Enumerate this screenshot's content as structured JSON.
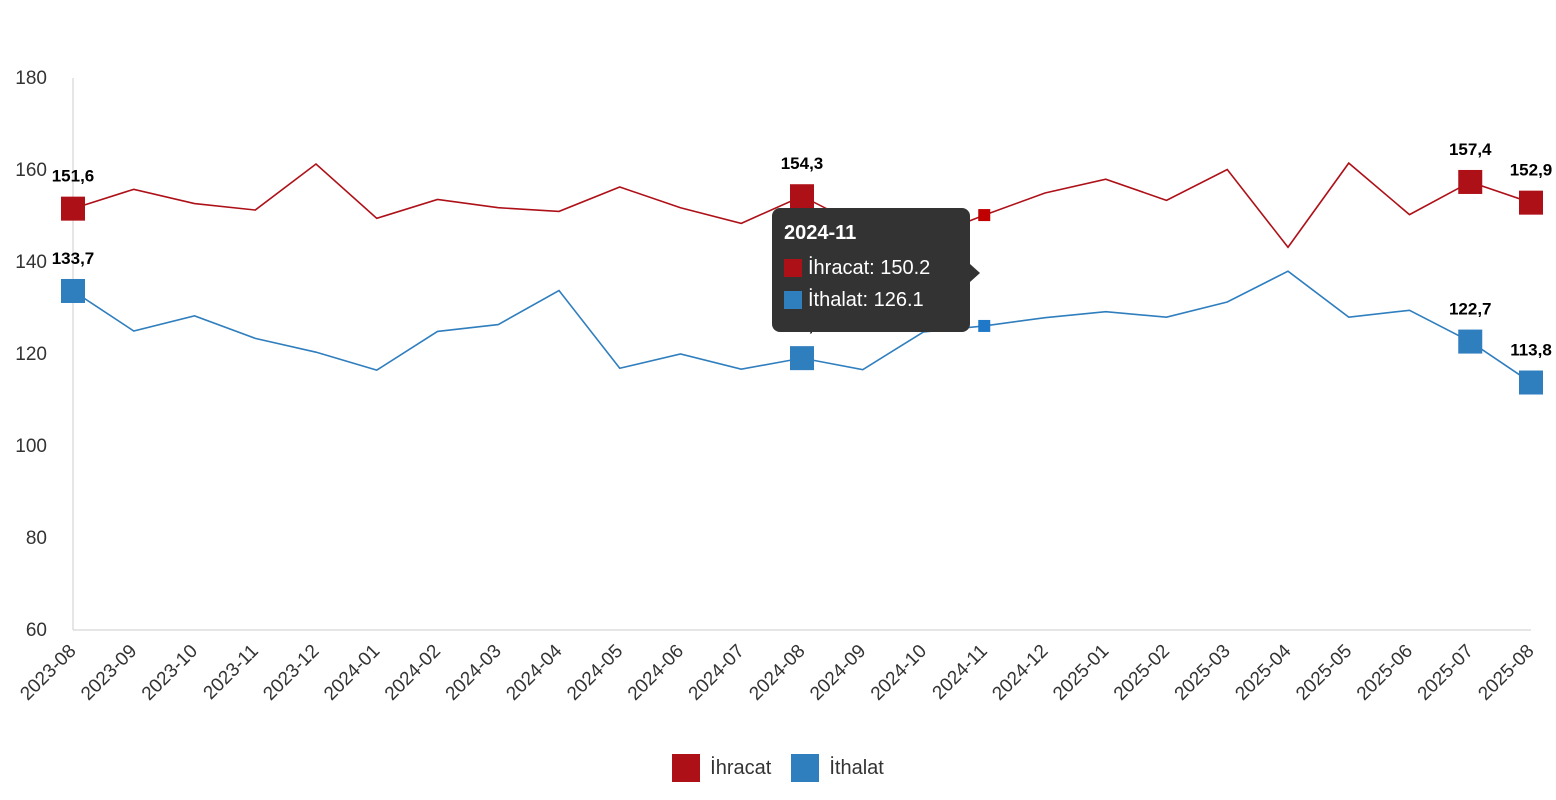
{
  "chart_data": {
    "type": "line",
    "categories": [
      "2023-08",
      "2023-09",
      "2023-10",
      "2023-11",
      "2023-12",
      "2024-01",
      "2024-02",
      "2024-03",
      "2024-04",
      "2024-05",
      "2024-06",
      "2024-07",
      "2024-08",
      "2024-09",
      "2024-10",
      "2024-11",
      "2024-12",
      "2025-01",
      "2025-02",
      "2025-03",
      "2025-04",
      "2025-05",
      "2025-06",
      "2025-07",
      "2025-08"
    ],
    "ylim": [
      60,
      180
    ],
    "yticks": [
      60,
      80,
      100,
      120,
      140,
      160,
      180
    ],
    "grid": false,
    "legend_position": "bottom-center",
    "series": [
      {
        "name": "İhracat",
        "color": "#ae1018",
        "values": [
          151.6,
          155.8,
          152.7,
          151.3,
          161.3,
          149.5,
          153.6,
          151.8,
          151.0,
          156.3,
          151.8,
          148.4,
          154.3,
          147.6,
          145.0,
          150.2,
          155.0,
          158.0,
          153.4,
          160.1,
          143.2,
          161.5,
          150.3,
          157.4,
          152.9
        ]
      },
      {
        "name": "İthalat",
        "color": "#2f7ebe",
        "values": [
          133.7,
          125.0,
          128.3,
          123.4,
          120.4,
          116.5,
          124.9,
          126.4,
          133.8,
          116.9,
          120.0,
          116.7,
          119.1,
          116.6,
          124.8,
          126.1,
          127.9,
          129.2,
          128.0,
          131.3,
          138.0,
          128.0,
          129.5,
          122.7,
          113.8
        ]
      }
    ],
    "highlight_indices": [
      0,
      12,
      23,
      24
    ],
    "data_labels": {
      "İhracat": [
        "151,6",
        "154,3",
        "157,4",
        "152,9"
      ],
      "İthalat": [
        "133,7",
        "119,1",
        "122,7",
        "113,8"
      ]
    },
    "tooltip": {
      "index": 15,
      "title": "2024-11",
      "rows": [
        "İhracat: 150.2",
        "İthalat: 126.1"
      ]
    }
  }
}
